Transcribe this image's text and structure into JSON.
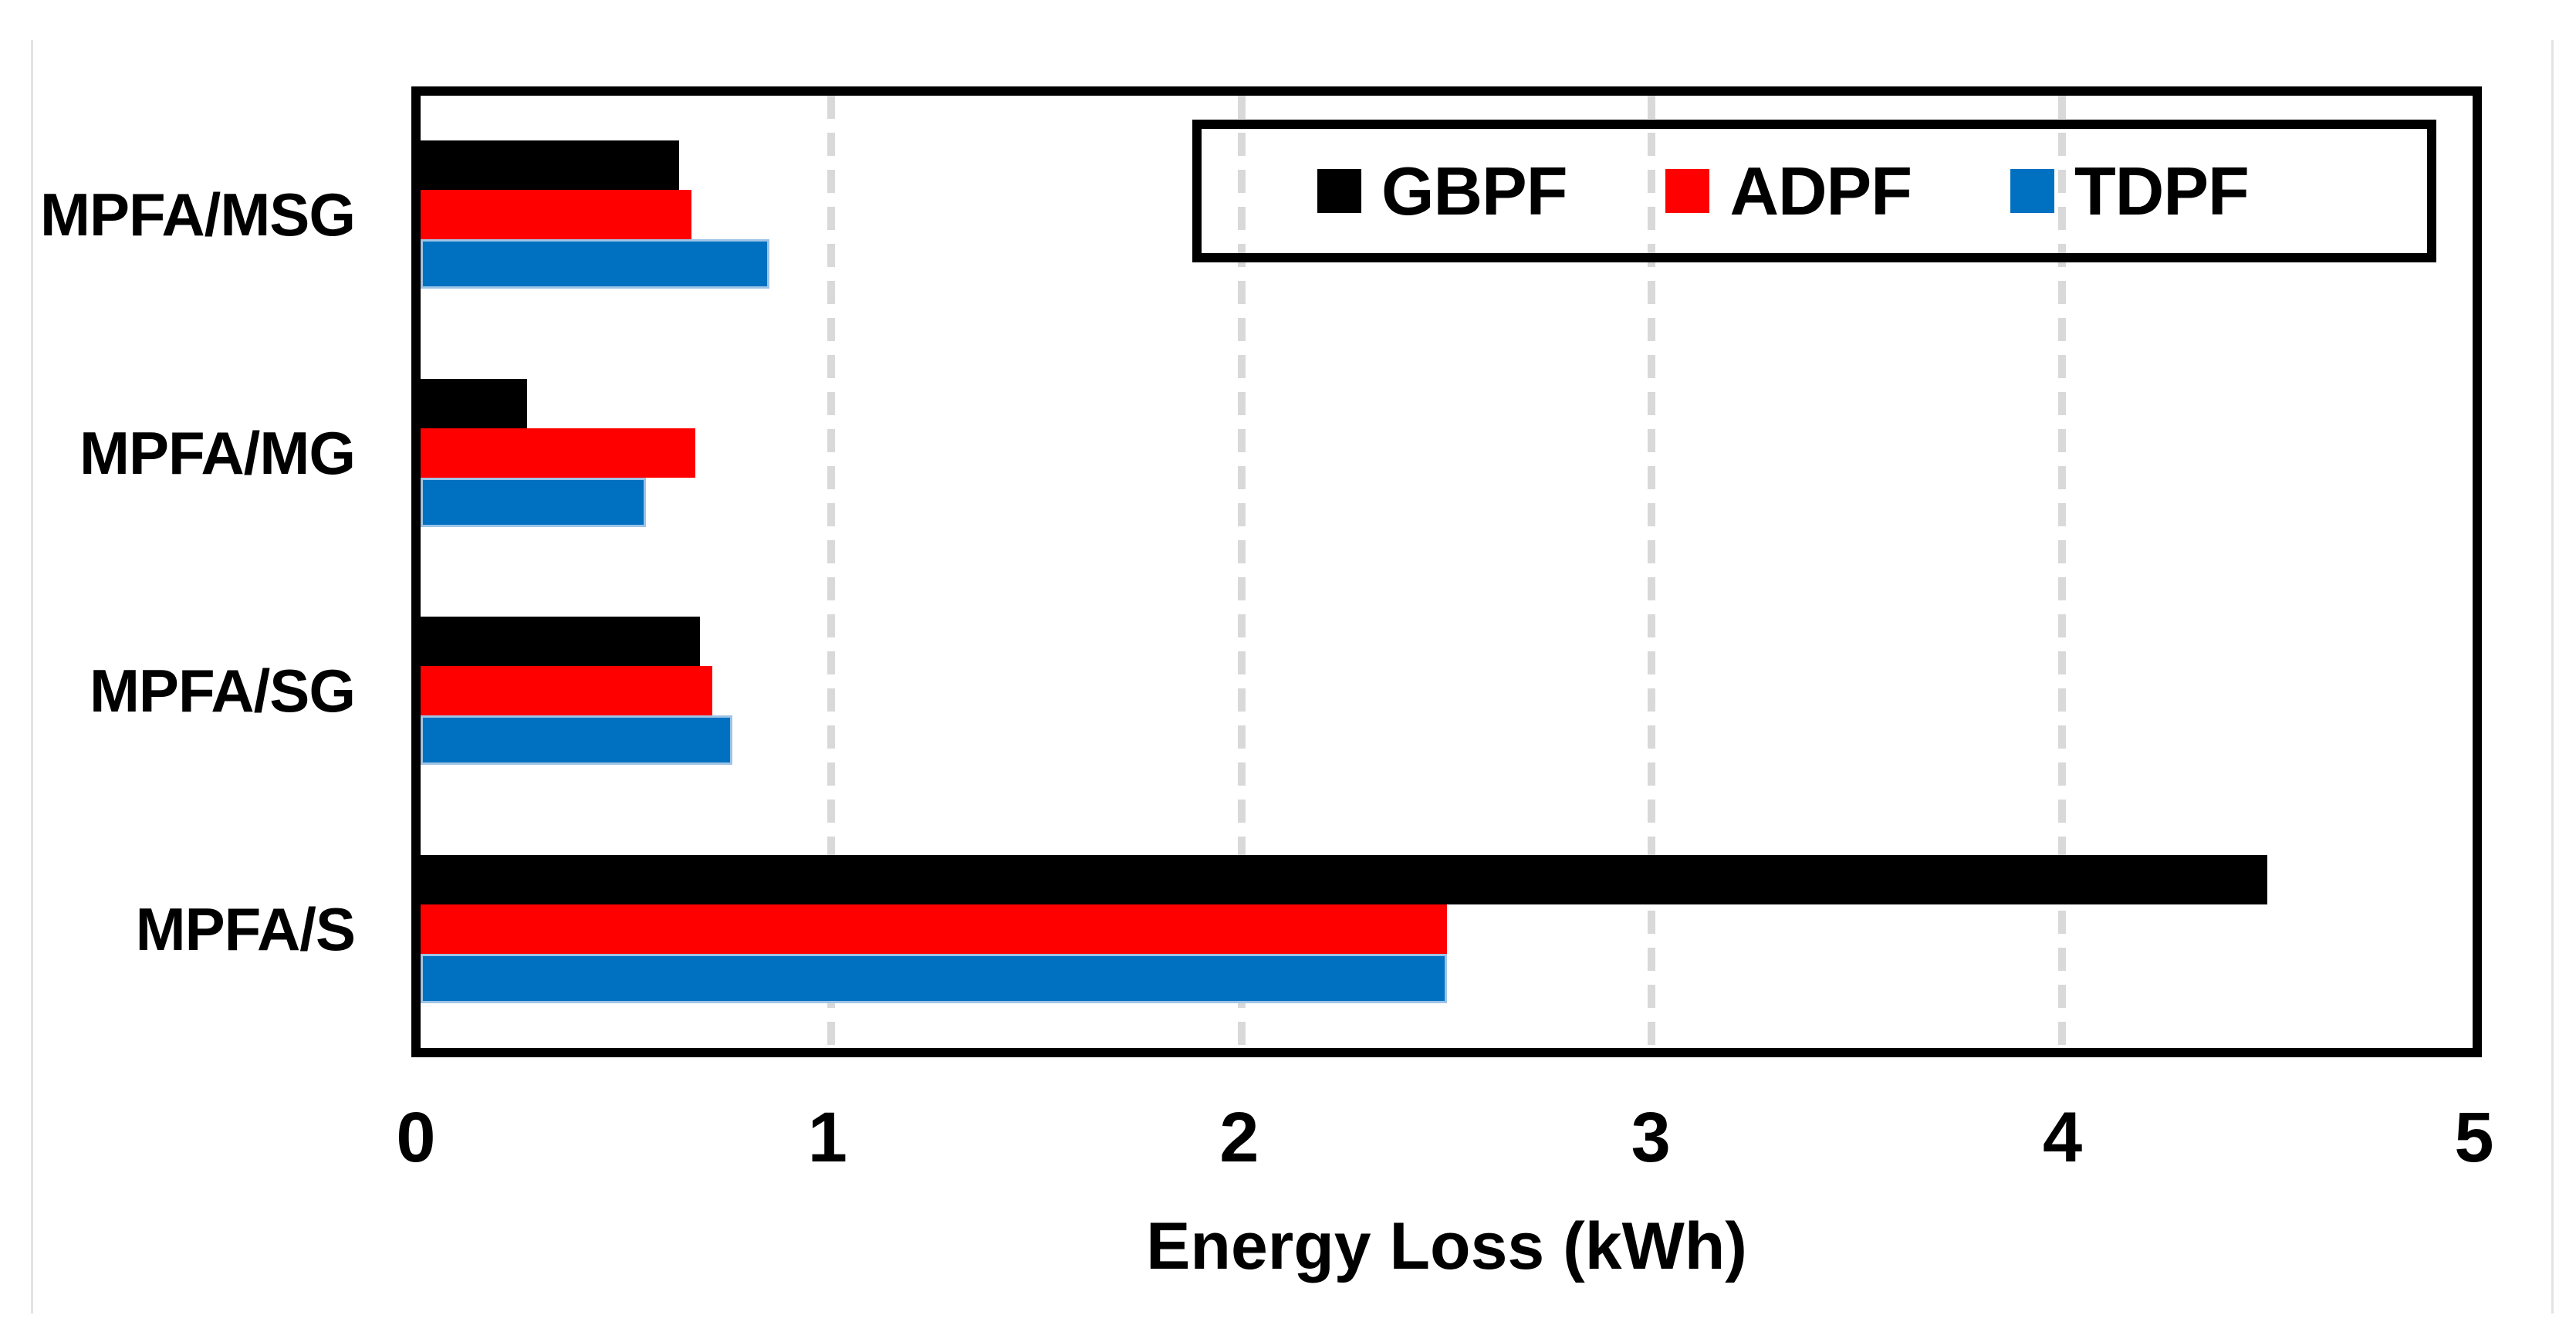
{
  "chart_data": {
    "type": "bar",
    "orientation": "horizontal",
    "title": "",
    "xlabel": "Energy Loss (kWh)",
    "ylabel": "",
    "categories": [
      "MPFA/MSG",
      "MPFA/MG",
      "MPFA/SG",
      "MPFA/S"
    ],
    "series": [
      {
        "name": "GBPF",
        "color": "#000000",
        "values": [
          0.63,
          0.26,
          0.68,
          4.5
        ]
      },
      {
        "name": "ADPF",
        "color": "#FF0000",
        "values": [
          0.66,
          0.67,
          0.71,
          2.5
        ]
      },
      {
        "name": "TDPF",
        "color": "#0070C0",
        "values": [
          0.85,
          0.55,
          0.76,
          2.5
        ]
      }
    ],
    "xlim": [
      0,
      5
    ],
    "xticks": [
      "0",
      "1",
      "2",
      "3",
      "4",
      "5"
    ],
    "gridlines": {
      "values": [
        1,
        2,
        3,
        4
      ],
      "style": "dashed",
      "color": "#D9D9D9"
    },
    "legend": {
      "position": "top-right-inside",
      "entries": [
        "GBPF",
        "ADPF",
        "TDPF"
      ]
    },
    "colors": {
      "plot_border": "#000000",
      "tdpf_bar_edge": "#9DC3E6",
      "frame_line": "#E3E3E3"
    }
  }
}
